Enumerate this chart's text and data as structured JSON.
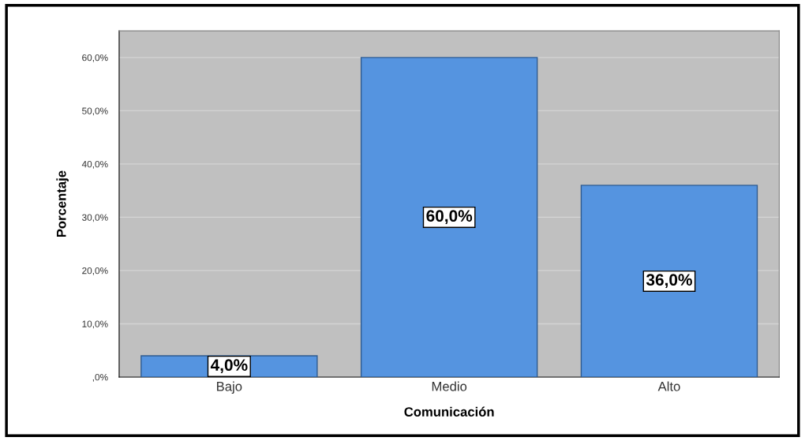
{
  "chart_data": {
    "type": "bar",
    "xlabel": "Comunicación",
    "ylabel": "Porcentaje",
    "categories": [
      "Bajo",
      "Medio",
      "Alto"
    ],
    "values": [
      4.0,
      60.0,
      36.0
    ],
    "value_labels": [
      "4,0%",
      "60,0%",
      "36,0%"
    ],
    "color": "#5594e0",
    "ylim": [
      0,
      65
    ],
    "yticks": [
      {
        "value": 0,
        "label": ",0%"
      },
      {
        "value": 10,
        "label": "10,0%"
      },
      {
        "value": 20,
        "label": "20,0%"
      },
      {
        "value": 30,
        "label": "30,0%"
      },
      {
        "value": 40,
        "label": "40,0%"
      },
      {
        "value": 50,
        "label": "50,0%"
      },
      {
        "value": 60,
        "label": "60,0%"
      }
    ],
    "grid": "y",
    "legend": false
  }
}
